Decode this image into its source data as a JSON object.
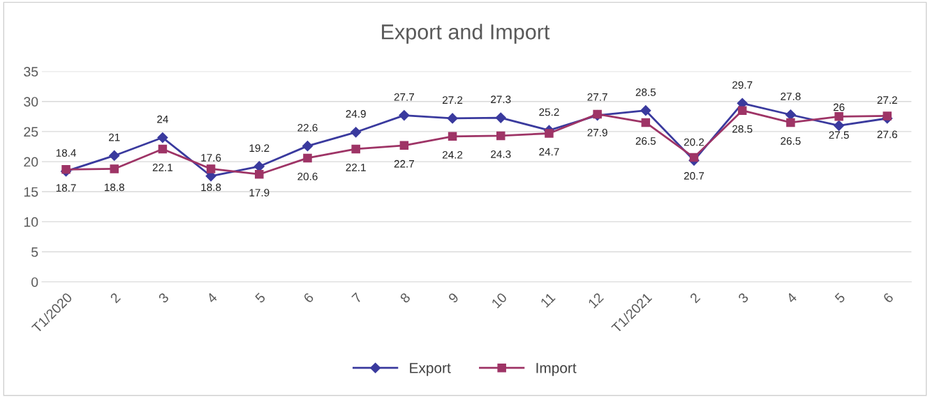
{
  "chart_data": {
    "type": "line",
    "title": "Export and Import",
    "categories": [
      "T1/2020",
      "2",
      "3",
      "4",
      "5",
      "6",
      "7",
      "8",
      "9",
      "10",
      "11",
      "12",
      "T1/2021",
      "2",
      "3",
      "4",
      "5",
      "6"
    ],
    "series": [
      {
        "name": "Export",
        "color": "#3a3a9e",
        "marker": "diamond",
        "values": [
          18.4,
          21,
          24,
          17.6,
          19.2,
          22.6,
          24.9,
          27.7,
          27.2,
          27.3,
          25.2,
          27.7,
          28.5,
          20.2,
          29.7,
          27.8,
          26,
          27.2
        ]
      },
      {
        "name": "Import",
        "color": "#9e3466",
        "marker": "square",
        "values": [
          18.7,
          18.8,
          22.1,
          18.8,
          17.9,
          20.6,
          22.1,
          22.7,
          24.2,
          24.3,
          24.7,
          27.9,
          26.5,
          20.7,
          28.5,
          26.5,
          27.5,
          27.6
        ]
      }
    ],
    "ylim": [
      0,
      35
    ],
    "yticks": [
      0,
      5,
      10,
      15,
      20,
      25,
      30,
      35
    ],
    "grid": "y",
    "legend": "bottom",
    "data_labels": true,
    "line_style": "solid"
  }
}
